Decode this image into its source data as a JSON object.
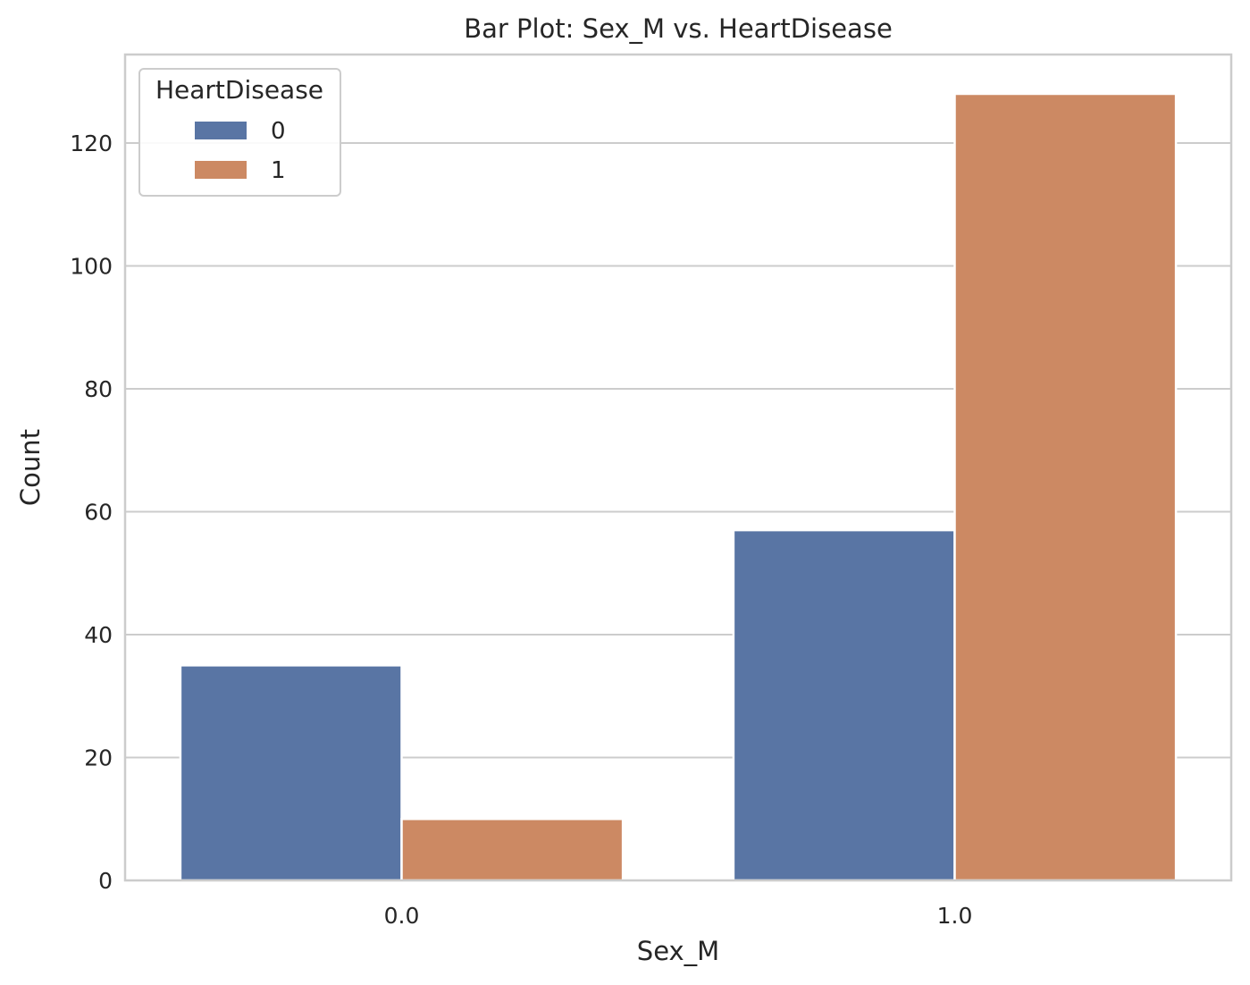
{
  "chart_data": {
    "type": "bar",
    "title": "Bar Plot: Sex_M vs. HeartDisease",
    "xlabel": "Sex_M",
    "ylabel": "Count",
    "categories": [
      "0.0",
      "1.0"
    ],
    "series": [
      {
        "name": "0",
        "values": [
          35,
          57
        ],
        "color": "#5975a4"
      },
      {
        "name": "1",
        "values": [
          10,
          128
        ],
        "color": "#cc8963"
      }
    ],
    "ylim": [
      0,
      134.4
    ],
    "yticks": [
      0,
      20,
      40,
      60,
      80,
      100,
      120
    ],
    "grid": "horizontal",
    "legend": {
      "title": "HeartDisease",
      "position": "top-left"
    }
  }
}
